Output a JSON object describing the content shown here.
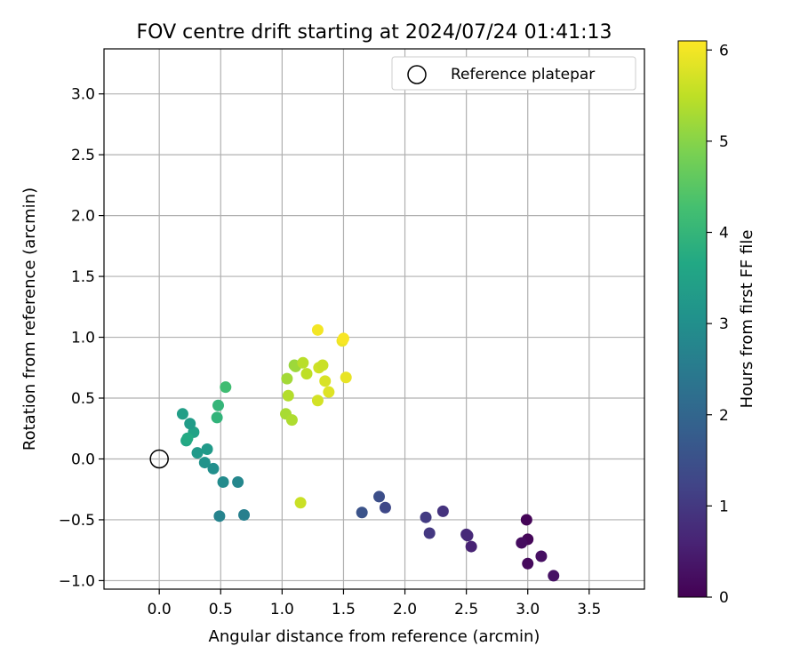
{
  "chart_data": {
    "type": "scatter",
    "title": "FOV centre drift starting at 2024/07/24 01:41:13",
    "xlabel": "Angular distance from reference (arcmin)",
    "ylabel": "Rotation from reference (arcmin)",
    "xlim": [
      -0.45,
      3.95
    ],
    "ylim": [
      -1.07,
      3.37
    ],
    "xticks": [
      0.0,
      0.5,
      1.0,
      1.5,
      2.0,
      2.5,
      3.0,
      3.5
    ],
    "xtick_labels": [
      "0.0",
      "0.5",
      "1.0",
      "1.5",
      "2.0",
      "2.5",
      "3.0",
      "3.5"
    ],
    "yticks": [
      -1.0,
      -0.5,
      0.0,
      0.5,
      1.0,
      1.5,
      2.0,
      2.5,
      3.0
    ],
    "ytick_labels": [
      "−1.0",
      "−0.5",
      "0.0",
      "0.5",
      "1.0",
      "1.5",
      "2.0",
      "2.5",
      "3.0"
    ],
    "grid": true,
    "legend": {
      "position": "top-right",
      "entries": [
        "Reference platepar"
      ]
    },
    "reference": {
      "x": 0.0,
      "y": 0.0
    },
    "colorbar": {
      "label": "Hours from first FF file",
      "range": [
        0,
        6.1
      ],
      "ticks": [
        0,
        1,
        2,
        3,
        4,
        5,
        6
      ],
      "tick_labels": [
        "0",
        "1",
        "2",
        "3",
        "4",
        "5",
        "6"
      ],
      "colormap": "viridis"
    },
    "points": [
      {
        "x": 2.99,
        "y": -0.5,
        "h": 0.05
      },
      {
        "x": 3.0,
        "y": -0.66,
        "h": 0.1
      },
      {
        "x": 2.95,
        "y": -0.69,
        "h": 0.2
      },
      {
        "x": 3.11,
        "y": -0.8,
        "h": 0.25
      },
      {
        "x": 3.0,
        "y": -0.86,
        "h": 0.15
      },
      {
        "x": 3.21,
        "y": -0.96,
        "h": 0.3
      },
      {
        "x": 2.54,
        "y": -0.72,
        "h": 0.6
      },
      {
        "x": 2.5,
        "y": -0.62,
        "h": 0.75
      },
      {
        "x": 2.51,
        "y": -0.63,
        "h": 0.7
      },
      {
        "x": 2.31,
        "y": -0.43,
        "h": 0.9
      },
      {
        "x": 2.2,
        "y": -0.61,
        "h": 1.0
      },
      {
        "x": 2.17,
        "y": -0.48,
        "h": 1.05
      },
      {
        "x": 1.84,
        "y": -0.4,
        "h": 1.3
      },
      {
        "x": 1.79,
        "y": -0.31,
        "h": 1.45
      },
      {
        "x": 1.65,
        "y": -0.44,
        "h": 1.55
      },
      {
        "x": 0.69,
        "y": -0.46,
        "h": 2.6
      },
      {
        "x": 0.49,
        "y": -0.47,
        "h": 2.7
      },
      {
        "x": 0.64,
        "y": -0.19,
        "h": 2.8
      },
      {
        "x": 0.52,
        "y": -0.19,
        "h": 2.9
      },
      {
        "x": 0.44,
        "y": -0.08,
        "h": 3.0
      },
      {
        "x": 0.37,
        "y": -0.03,
        "h": 3.1
      },
      {
        "x": 0.31,
        "y": 0.05,
        "h": 3.25
      },
      {
        "x": 0.39,
        "y": 0.08,
        "h": 3.3
      },
      {
        "x": 0.28,
        "y": 0.22,
        "h": 3.5
      },
      {
        "x": 0.25,
        "y": 0.29,
        "h": 3.35
      },
      {
        "x": 0.22,
        "y": 0.15,
        "h": 3.6
      },
      {
        "x": 0.23,
        "y": 0.17,
        "h": 3.7
      },
      {
        "x": 0.19,
        "y": 0.37,
        "h": 3.4
      },
      {
        "x": 0.47,
        "y": 0.34,
        "h": 3.95
      },
      {
        "x": 0.48,
        "y": 0.44,
        "h": 4.0
      },
      {
        "x": 0.54,
        "y": 0.59,
        "h": 4.2
      },
      {
        "x": 1.15,
        "y": -0.36,
        "h": 5.6
      },
      {
        "x": 1.03,
        "y": 0.37,
        "h": 5.3
      },
      {
        "x": 1.08,
        "y": 0.32,
        "h": 5.35
      },
      {
        "x": 1.05,
        "y": 0.52,
        "h": 5.4
      },
      {
        "x": 1.04,
        "y": 0.66,
        "h": 5.25
      },
      {
        "x": 1.1,
        "y": 0.77,
        "h": 5.15
      },
      {
        "x": 1.11,
        "y": 0.76,
        "h": 5.2
      },
      {
        "x": 1.17,
        "y": 0.79,
        "h": 5.45
      },
      {
        "x": 1.2,
        "y": 0.7,
        "h": 5.5
      },
      {
        "x": 1.29,
        "y": 0.48,
        "h": 5.7
      },
      {
        "x": 1.3,
        "y": 0.75,
        "h": 5.65
      },
      {
        "x": 1.33,
        "y": 0.77,
        "h": 5.6
      },
      {
        "x": 1.35,
        "y": 0.64,
        "h": 5.75
      },
      {
        "x": 1.38,
        "y": 0.55,
        "h": 5.8
      },
      {
        "x": 1.29,
        "y": 1.06,
        "h": 6.0
      },
      {
        "x": 1.49,
        "y": 0.97,
        "h": 5.95
      },
      {
        "x": 1.5,
        "y": 0.99,
        "h": 6.05
      },
      {
        "x": 1.52,
        "y": 0.67,
        "h": 5.9
      }
    ]
  }
}
